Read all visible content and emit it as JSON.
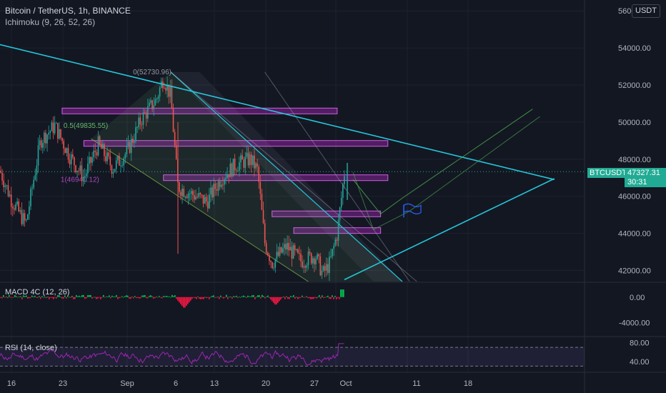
{
  "header": {
    "symbol_title": "Bitcoin / TetherUS, 1h, BINANCE",
    "indicator": "Ichimoku (9, 26, 52, 26)",
    "currency_button": "USDT"
  },
  "price_axis": {
    "ticks": [
      "56000.00",
      "54000.00",
      "52000.00",
      "50000.00",
      "48000.00",
      "46000.00",
      "44000.00",
      "42000.00"
    ],
    "tick_values": [
      56000,
      54000,
      52000,
      50000,
      48000,
      46000,
      44000,
      42000
    ]
  },
  "last_price": {
    "symbol": "BTCUSDT",
    "price": "47327.31",
    "countdown": "30:31",
    "value": 47327.31,
    "color": "#22ab94"
  },
  "fib_labels": {
    "top": "0(52730.96)",
    "mid": "0.5(49835.55)",
    "bottom": "1(46940.12)"
  },
  "macd_panel": {
    "label": "MACD 4C (12, 26)",
    "ticks": [
      "0.00",
      "-4000.00"
    ]
  },
  "rsi_panel": {
    "label": "RSI (14, close)",
    "ticks": [
      "80.00",
      "40.00"
    ],
    "band_upper": 70,
    "band_lower": 30
  },
  "time_axis": {
    "labels": [
      "16",
      "23",
      "Sep",
      "6",
      "13",
      "20",
      "27",
      "Oct",
      "11",
      "18"
    ]
  },
  "colors": {
    "background": "#131722",
    "trendline": "#26c6da",
    "zone": "#9c27b0",
    "up_candle": "#26a69a",
    "down_candle": "#ef5350",
    "rsi_line": "#9c27b0",
    "macd_positive": "#00c853",
    "macd_negative": "#ff1744"
  },
  "chart_data": {
    "type": "candlestick",
    "title": "Bitcoin / TetherUS, 1h, BINANCE",
    "price_range": [
      41400,
      56200
    ],
    "zones": [
      {
        "from_date": "Aug 23",
        "to_date": "Sep 30",
        "price": 50600
      },
      {
        "from_date": "Aug 26",
        "to_date": "Oct 7",
        "price": 48850
      },
      {
        "from_date": "Sep 6",
        "to_date": "Oct 7",
        "price": 47000
      },
      {
        "from_date": "Sep 21",
        "to_date": "Oct 6",
        "price": 45050
      },
      {
        "from_date": "Sep 24",
        "to_date": "Oct 6",
        "price": 44150
      }
    ],
    "fibonacci": [
      {
        "level": 0,
        "price": 52730.96
      },
      {
        "level": 0.5,
        "price": 49835.55
      },
      {
        "level": 1,
        "price": 46940.12
      }
    ],
    "trendlines": [
      {
        "name": "descending resistance",
        "from": [
          "Aug 10",
          54600
        ],
        "to": [
          "Oct 30",
          46900
        ]
      },
      {
        "name": "ascending support",
        "from": [
          "Oct 1",
          41500
        ],
        "to": [
          "Oct 30",
          46950
        ]
      }
    ],
    "price_path": [
      [
        "Aug 10",
        46000
      ],
      [
        "Aug 12",
        46800
      ],
      [
        "Aug 14",
        47800
      ],
      [
        "Aug 16",
        45800
      ],
      [
        "Aug 18",
        44500
      ],
      [
        "Aug 20",
        49000
      ],
      [
        "Aug 22",
        49800
      ],
      [
        "Aug 24",
        48200
      ],
      [
        "Aug 26",
        47000
      ],
      [
        "Aug 28",
        48800
      ],
      [
        "Aug 30",
        47500
      ],
      [
        "Sep 1",
        48400
      ],
      [
        "Sep 3",
        50200
      ],
      [
        "Sep 5",
        51200
      ],
      [
        "Sep 6",
        52400
      ],
      [
        "Sep 7",
        51400
      ],
      [
        "Sep 8",
        46500
      ],
      [
        "Sep 10",
        46100
      ],
      [
        "Sep 12",
        45700
      ],
      [
        "Sep 14",
        47000
      ],
      [
        "Sep 16",
        47700
      ],
      [
        "Sep 18",
        48000
      ],
      [
        "Sep 19",
        47400
      ],
      [
        "Sep 20",
        43500
      ],
      [
        "Sep 21",
        42400
      ],
      [
        "Sep 23",
        43300
      ],
      [
        "Sep 25",
        42500
      ],
      [
        "Sep 27",
        42800
      ],
      [
        "Sep 28",
        41800
      ],
      [
        "Sep 29",
        42400
      ],
      [
        "Sep 30",
        44000
      ],
      [
        "Oct 1",
        47300
      ]
    ],
    "rsi_range": [
      20,
      90
    ],
    "macd_range": [
      -6000,
      2000
    ]
  }
}
